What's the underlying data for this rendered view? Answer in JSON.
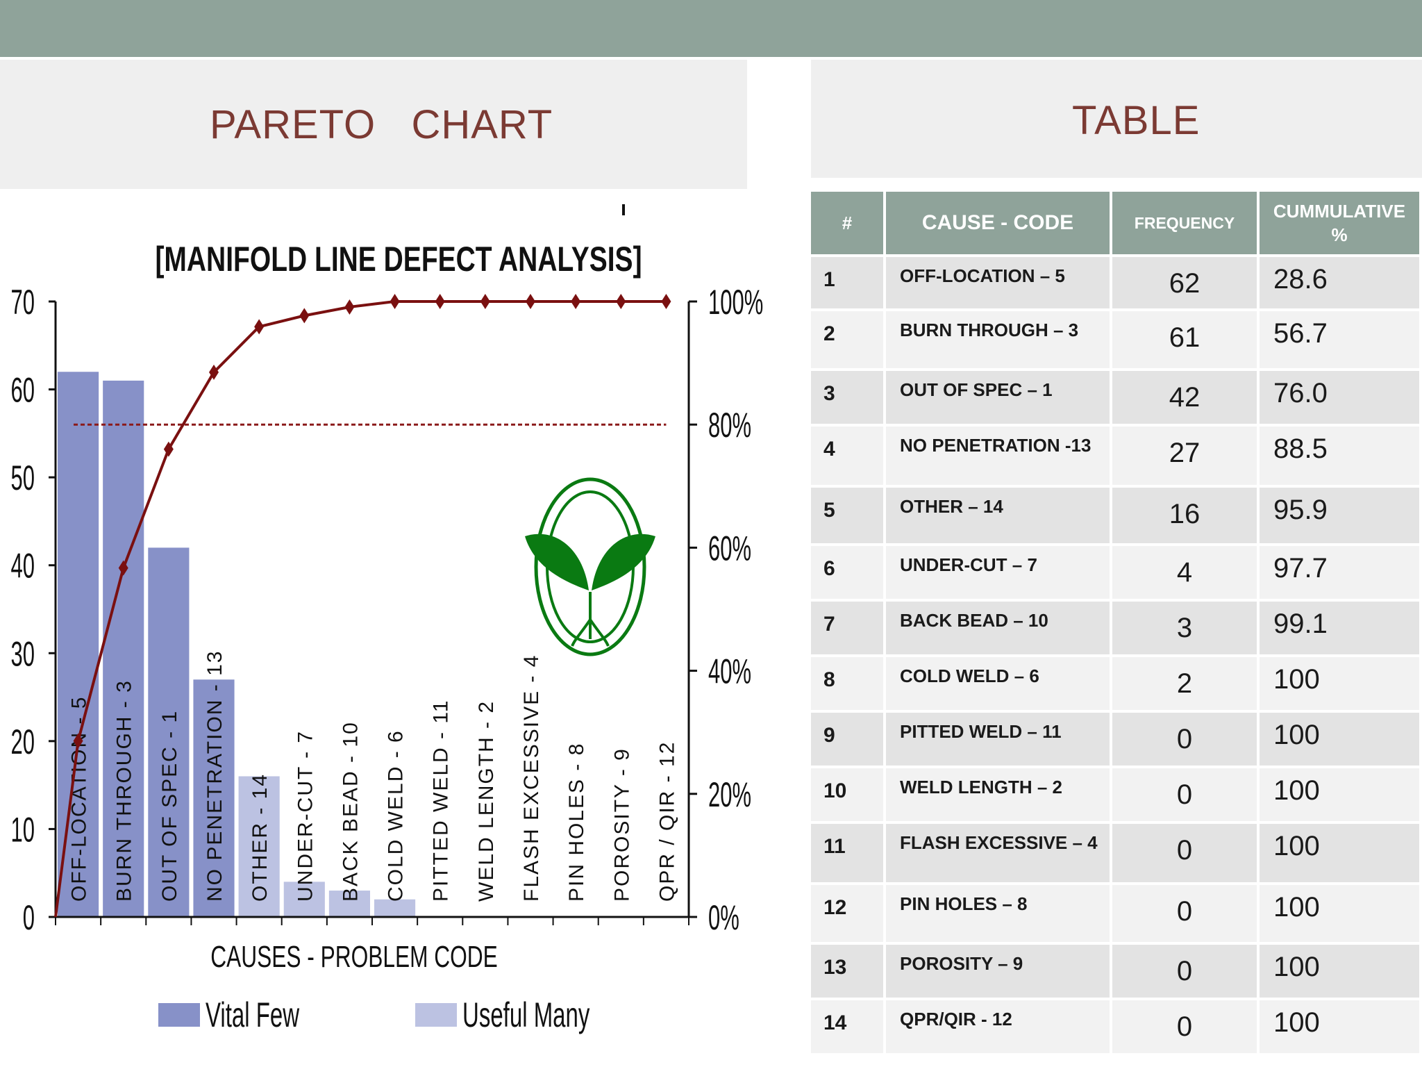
{
  "header": {
    "left_title": "PARETO   CHART",
    "right_title": "TABLE"
  },
  "chart_data": {
    "type": "bar",
    "title": "[MANIFOLD LINE DEFECT ANALYSIS]",
    "xlabel": "CAUSES - PROBLEM CODE",
    "categories": [
      "OFF-LOCATION - 5",
      "BURN THROUGH - 3",
      "OUT OF SPEC - 1",
      "NO PENETRATION - 13",
      "OTHER - 14",
      "UNDER-CUT - 7",
      "BACK BEAD - 10",
      "COLD WELD - 6",
      "PITTED WELD - 11",
      "WELD LENGTH - 2",
      "FLASH EXCESSIVE - 4",
      "PIN HOLES - 8",
      "POROSITY - 9",
      "QPR / QIR - 12"
    ],
    "values": [
      62,
      61,
      42,
      27,
      16,
      4,
      3,
      2,
      0,
      0,
      0,
      0,
      0,
      0
    ],
    "groups": [
      "Vital Few",
      "Vital Few",
      "Vital Few",
      "Vital Few",
      "Useful Many",
      "Useful Many",
      "Useful Many",
      "Useful Many",
      "Useful Many",
      "Useful Many",
      "Useful Many",
      "Useful Many",
      "Useful Many",
      "Useful Many"
    ],
    "cumulative_percent": [
      28.6,
      56.7,
      76.0,
      88.5,
      95.9,
      97.7,
      99.1,
      100,
      100,
      100,
      100,
      100,
      100,
      100
    ],
    "ylim_left": [
      0,
      70
    ],
    "yticks_left": [
      "0",
      "10",
      "20",
      "30",
      "40",
      "50",
      "60",
      "70"
    ],
    "ylim_right": [
      0,
      100
    ],
    "yticks_right": [
      "0%",
      "20%",
      "40%",
      "60%",
      "80%",
      "100%"
    ],
    "threshold_percent": 80,
    "legend": [
      "Vital Few",
      "Useful Many"
    ],
    "legend_position": "bottom",
    "colors": {
      "vital": "#8791c8",
      "useful": "#bcc2e2",
      "line": "#7a1010",
      "threshold": "#8b1a1a",
      "logo": "#0a7a12"
    }
  },
  "table": {
    "headers": [
      "#",
      "CAUSE - CODE",
      "FREQUENCY",
      "CUMMULATIVE %"
    ],
    "rows": [
      {
        "num": "1",
        "cause": "OFF-LOCATION – 5",
        "freq": "62",
        "cum": "28.6"
      },
      {
        "num": "2",
        "cause": "BURN THROUGH – 3",
        "freq": "61",
        "cum": "56.7"
      },
      {
        "num": "3",
        "cause": "OUT OF SPEC – 1",
        "freq": "42",
        "cum": "76.0"
      },
      {
        "num": "4",
        "cause": "NO PENETRATION -13",
        "freq": "27",
        "cum": "88.5"
      },
      {
        "num": "5",
        "cause": "OTHER – 14",
        "freq": "16",
        "cum": "95.9"
      },
      {
        "num": "6",
        "cause": "UNDER-CUT – 7",
        "freq": "4",
        "cum": "97.7"
      },
      {
        "num": "7",
        "cause": "BACK BEAD – 10",
        "freq": "3",
        "cum": "99.1"
      },
      {
        "num": "8",
        "cause": "COLD WELD – 6",
        "freq": "2",
        "cum": "100"
      },
      {
        "num": "9",
        "cause": "PITTED WELD – 11",
        "freq": "0",
        "cum": "100"
      },
      {
        "num": "10",
        "cause": "WELD LENGTH – 2",
        "freq": "0",
        "cum": "100"
      },
      {
        "num": "11",
        "cause": "FLASH EXCESSIVE – 4",
        "freq": "0",
        "cum": "100"
      },
      {
        "num": "12",
        "cause": "PIN HOLES – 8",
        "freq": "0",
        "cum": "100"
      },
      {
        "num": "13",
        "cause": "POROSITY – 9",
        "freq": "0",
        "cum": "100"
      },
      {
        "num": "14",
        "cause": "QPR/QIR - 12",
        "freq": "0",
        "cum": "100"
      }
    ]
  },
  "colors": {
    "topbar": "#8fa39a",
    "header_bg": "#efefef",
    "title": "#7b3a33"
  }
}
